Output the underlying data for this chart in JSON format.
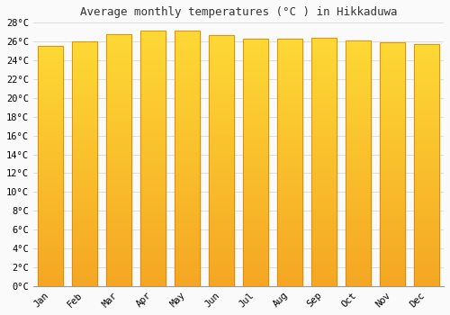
{
  "title": "Average monthly temperatures (°C ) in Hikkaduwa",
  "months": [
    "Jan",
    "Feb",
    "Mar",
    "Apr",
    "May",
    "Jun",
    "Jul",
    "Aug",
    "Sep",
    "Oct",
    "Nov",
    "Dec"
  ],
  "values": [
    25.5,
    26.0,
    26.8,
    27.2,
    27.2,
    26.7,
    26.3,
    26.3,
    26.4,
    26.1,
    25.9,
    25.7
  ],
  "bar_color_top": "#FDD835",
  "bar_color_bottom": "#F5A623",
  "bar_color_edge": "#D4890A",
  "ylim": [
    0,
    28
  ],
  "ytick_step": 2,
  "bg_color": "#FAFAFA",
  "plot_bg_color": "#FAFAFA",
  "grid_color": "#DDDDDD",
  "title_fontsize": 9,
  "tick_fontsize": 7.5,
  "title_font": "monospace",
  "tick_font": "monospace",
  "bar_width": 0.75
}
